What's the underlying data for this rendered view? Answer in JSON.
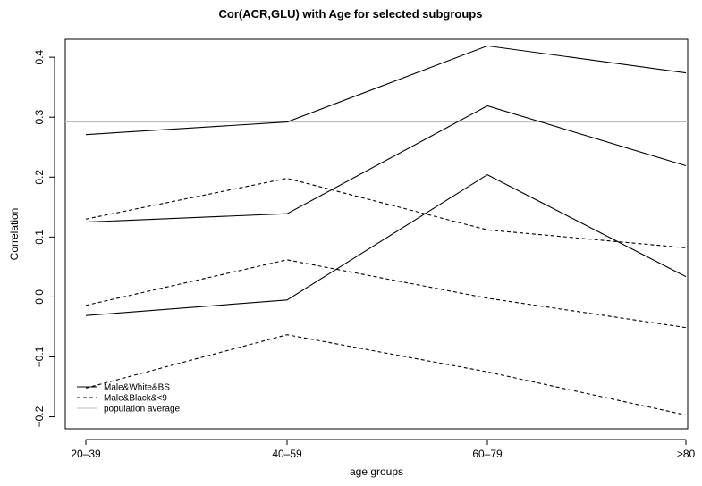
{
  "chart_data": {
    "type": "line",
    "title": "Cor(ACR,GLU) with Age for selected subgroups",
    "xlabel": "age groups",
    "ylabel": "Correlation",
    "categories": [
      "20–39",
      "40–59",
      "60–79",
      ">80"
    ],
    "ylim": [
      -0.22,
      0.43
    ],
    "yticks": [
      -0.2,
      -0.1,
      0.0,
      0.1,
      0.2,
      0.3,
      0.4
    ],
    "ytick_labels": [
      "−0.2",
      "−0.1",
      "0.0",
      "0.1",
      "0.2",
      "0.3",
      "0.4"
    ],
    "grid": false,
    "legend_position": "bottom-left",
    "reference_line": {
      "name": "population average",
      "value": 0.292,
      "color": "#bfbfbf"
    },
    "series": [
      {
        "group": "Male&White&BS",
        "style": "solid",
        "color": "#000000",
        "values": [
          0.271,
          0.292,
          0.419,
          0.374
        ]
      },
      {
        "group": "Male&White&BS",
        "style": "solid",
        "color": "#000000",
        "values": [
          0.125,
          0.139,
          0.319,
          0.219
        ]
      },
      {
        "group": "Male&White&BS",
        "style": "solid",
        "color": "#000000",
        "values": [
          -0.031,
          -0.005,
          0.204,
          0.034
        ]
      },
      {
        "group": "Male&Black&<9",
        "style": "dashed",
        "color": "#000000",
        "values": [
          0.13,
          0.198,
          0.112,
          0.082
        ]
      },
      {
        "group": "Male&Black&<9",
        "style": "dashed",
        "color": "#000000",
        "values": [
          -0.014,
          0.062,
          -0.002,
          -0.051
        ]
      },
      {
        "group": "Male&Black&<9",
        "style": "dashed",
        "color": "#000000",
        "values": [
          -0.152,
          -0.063,
          -0.125,
          -0.197
        ]
      }
    ],
    "legend": [
      {
        "label": "Male&White&BS",
        "style": "solid",
        "color": "#000000"
      },
      {
        "label": "Male&Black&<9",
        "style": "dashed",
        "color": "#000000"
      },
      {
        "label": "population average",
        "style": "solid",
        "color": "#bfbfbf"
      }
    ]
  }
}
